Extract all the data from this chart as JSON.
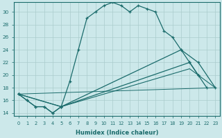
{
  "xlabel": "Humidex (Indice chaleur)",
  "bg_color": "#cce8ea",
  "grid_color": "#aacccc",
  "line_color": "#1a6b6b",
  "xlim": [
    -0.5,
    23.5
  ],
  "ylim": [
    13.5,
    31.5
  ],
  "yticks": [
    14,
    16,
    18,
    20,
    22,
    24,
    26,
    28,
    30
  ],
  "xticks": [
    0,
    1,
    2,
    3,
    4,
    5,
    6,
    7,
    8,
    9,
    10,
    11,
    12,
    13,
    14,
    15,
    16,
    17,
    18,
    19,
    20,
    21,
    22,
    23
  ],
  "curve1_x": [
    0,
    1,
    2,
    3,
    4,
    5,
    6,
    7,
    8,
    9,
    10,
    11,
    12,
    13,
    14,
    15,
    16,
    17,
    18,
    19,
    20,
    21
  ],
  "curve1_y": [
    17,
    16,
    15,
    15,
    14,
    15,
    19,
    24,
    29,
    30,
    31,
    31.5,
    31,
    30,
    31,
    30.5,
    30,
    27,
    26,
    24,
    22,
    20
  ],
  "curve2_x": [
    0,
    1,
    2,
    3,
    4,
    5,
    20,
    21,
    22
  ],
  "curve2_y": [
    17,
    16,
    15,
    15,
    14,
    15,
    22,
    20,
    18
  ],
  "curve3_x": [
    0,
    5,
    19,
    21,
    23
  ],
  "curve3_y": [
    17,
    15,
    24,
    22,
    18
  ],
  "curve4_x": [
    0,
    5,
    20,
    23
  ],
  "curve4_y": [
    17,
    15,
    21,
    18
  ],
  "curve5_x": [
    0,
    23
  ],
  "curve5_y": [
    17,
    18
  ]
}
